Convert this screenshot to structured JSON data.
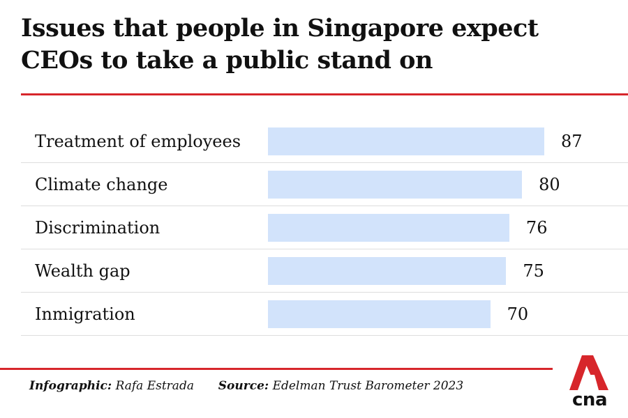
{
  "title": "Issues that people in Singapore expect CEOs to take a public stand on",
  "chart_data": {
    "type": "bar",
    "orientation": "horizontal",
    "title": "Issues that people in Singapore expect CEOs to take a public stand on",
    "categories": [
      "Treatment of employees",
      "Climate change",
      "Discrimination",
      "Wealth gap",
      "Inmigration"
    ],
    "values": [
      87,
      80,
      76,
      75,
      70
    ],
    "xlabel": "",
    "ylabel": "",
    "grid": false,
    "bar_color": "#d2e3fb"
  },
  "footer": {
    "infographic_label": "Infographic:",
    "infographic_value": "Rafa Estrada",
    "source_label": "Source:",
    "source_value": "Edelman Trust Barometer 2023"
  },
  "logo": {
    "text": "cna",
    "color": "#d7262b"
  },
  "colors": {
    "accent": "#d7262b",
    "bar": "#d2e3fb",
    "divider": "#dddddd"
  }
}
